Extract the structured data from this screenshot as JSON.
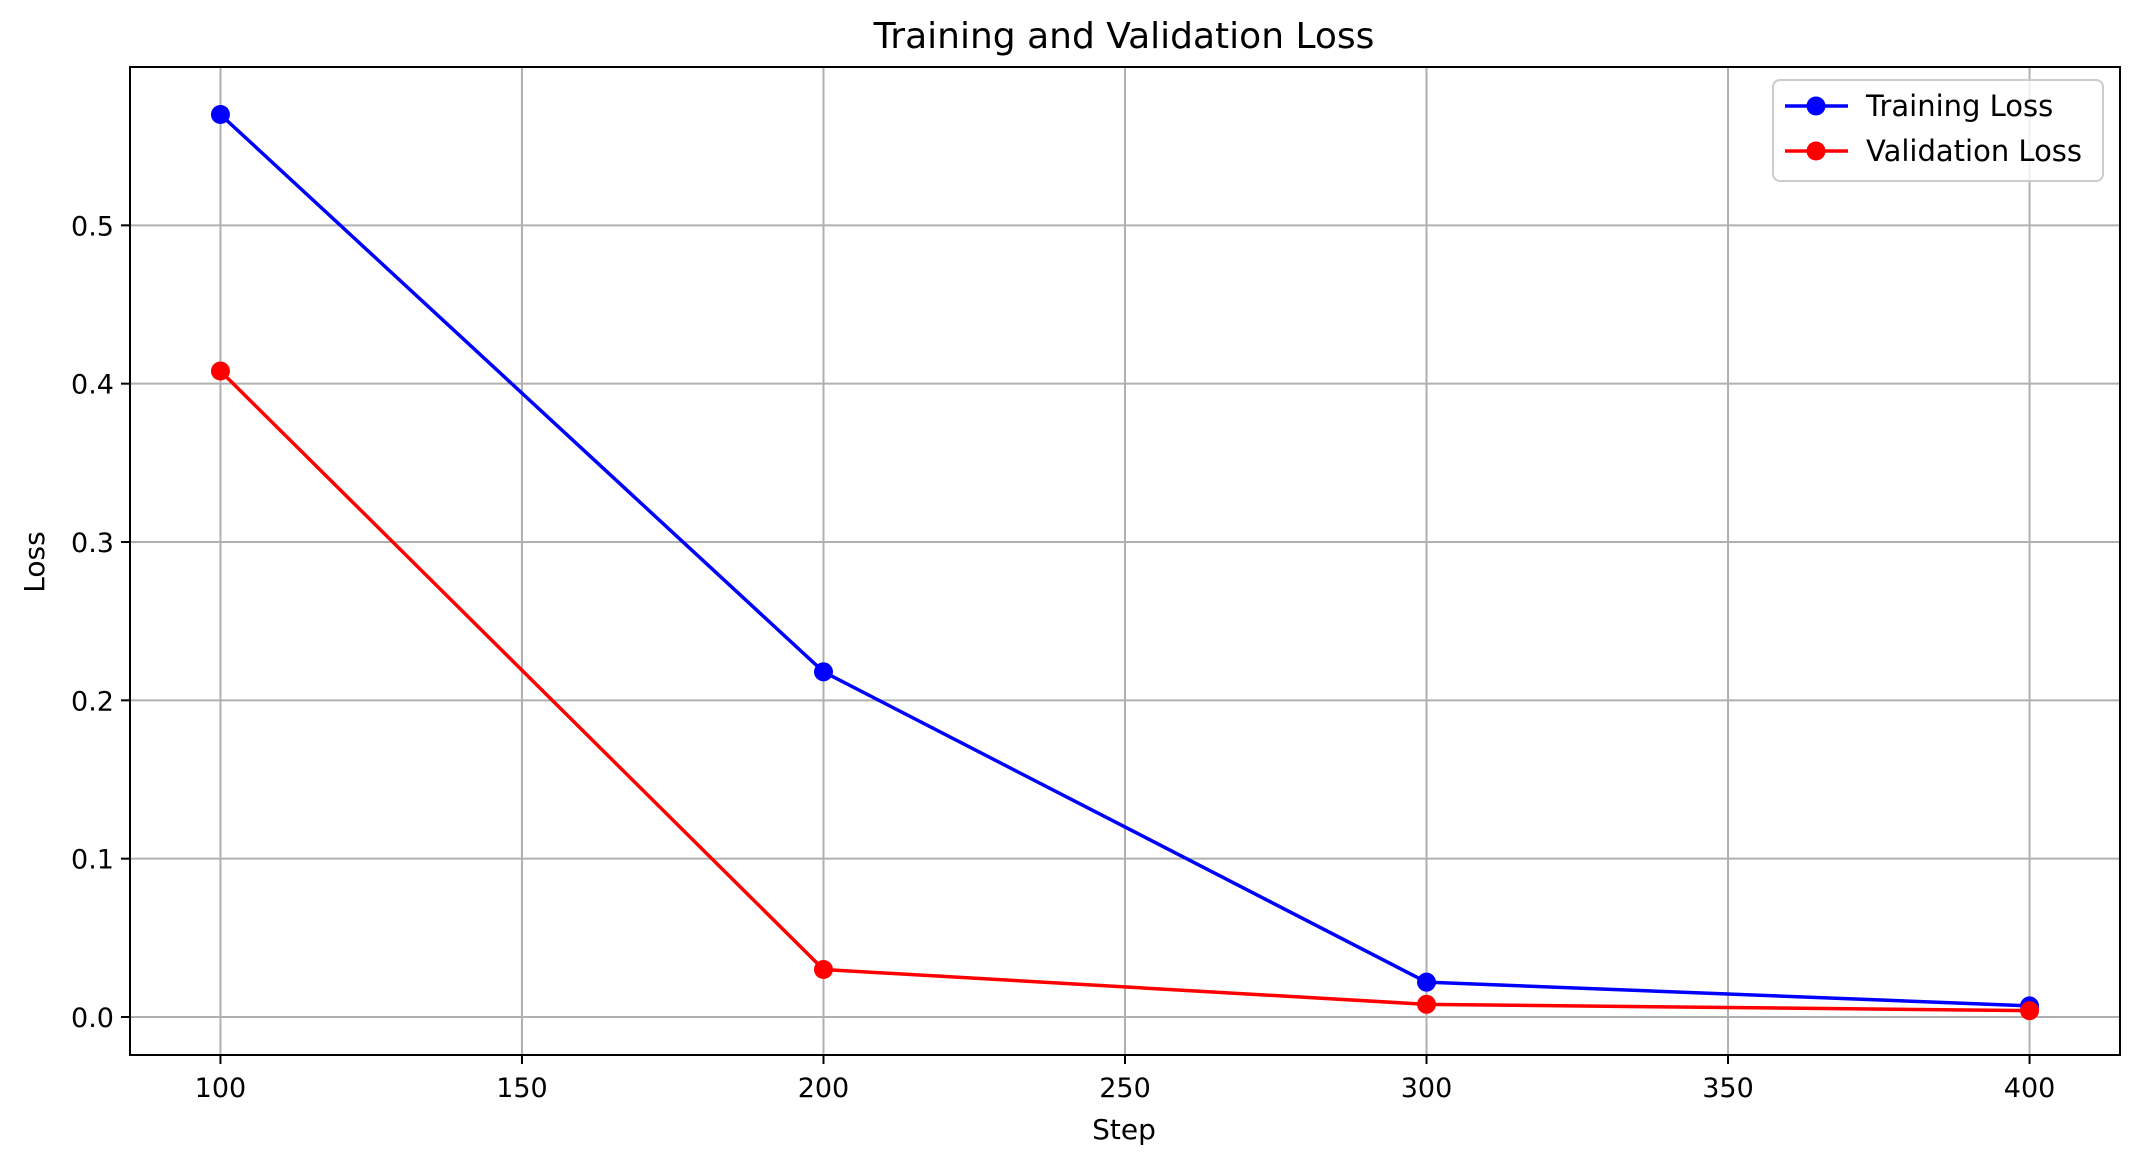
{
  "chart_data": {
    "type": "line",
    "title": "Training and Validation Loss",
    "xlabel": "Step",
    "ylabel": "Loss",
    "xlim": [
      85,
      415
    ],
    "ylim": [
      -0.024,
      0.6
    ],
    "xticks": [
      100,
      150,
      200,
      250,
      300,
      350,
      400
    ],
    "xtick_labels": [
      "100",
      "150",
      "200",
      "250",
      "300",
      "350",
      "400"
    ],
    "yticks": [
      0.0,
      0.1,
      0.2,
      0.3,
      0.4,
      0.5
    ],
    "ytick_labels": [
      "0.0",
      "0.1",
      "0.2",
      "0.3",
      "0.4",
      "0.5"
    ],
    "grid": true,
    "legend": "top-right",
    "x": [
      100,
      200,
      300,
      400
    ],
    "series": [
      {
        "name": "Training Loss",
        "color": "#0000ff",
        "marker": "circle",
        "values": [
          0.57,
          0.218,
          0.022,
          0.007
        ]
      },
      {
        "name": "Validation Loss",
        "color": "#ff0000",
        "marker": "circle",
        "values": [
          0.408,
          0.03,
          0.008,
          0.004
        ]
      }
    ]
  }
}
